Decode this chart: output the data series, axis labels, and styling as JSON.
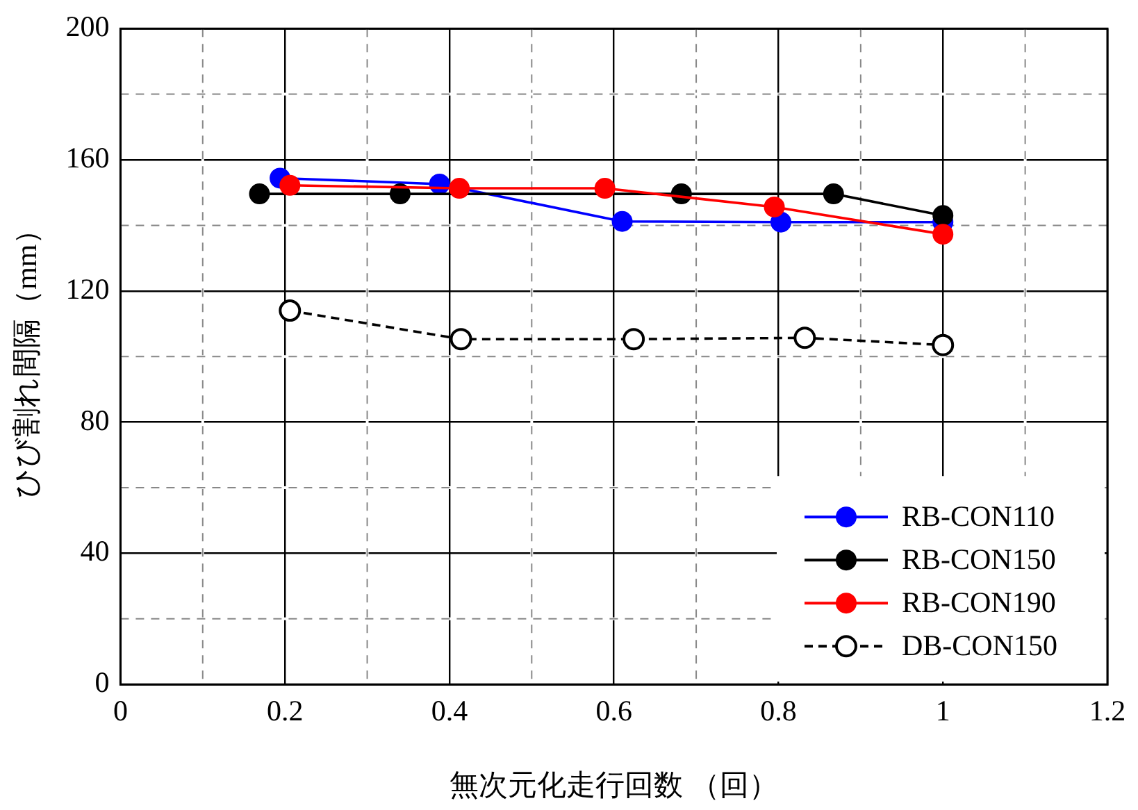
{
  "chart_data": {
    "type": "line",
    "xlabel": "無次元化走行回数 （回）",
    "ylabel": "ひび割れ間隔（mm）",
    "xlim": [
      0,
      1.2
    ],
    "ylim": [
      0,
      200
    ],
    "xticks": [
      0,
      {
        "value": 0.1,
        "label": null
      },
      0.2,
      {
        "value": 0.3,
        "label": null
      },
      0.4,
      {
        "value": 0.5,
        "label": null
      },
      0.6,
      {
        "value": 0.7,
        "label": null
      },
      0.8,
      {
        "value": 0.9,
        "label": null
      },
      1,
      {
        "value": 1.1,
        "label": null
      },
      1.2
    ],
    "yticks": [
      0,
      {
        "value": 20,
        "label": null
      },
      40,
      {
        "value": 60,
        "label": null
      },
      80,
      {
        "value": 100,
        "label": null
      },
      120,
      {
        "value": 140,
        "label": null
      },
      160,
      {
        "value": 180,
        "label": null
      },
      200
    ],
    "grid": true,
    "legend": "bottom right",
    "marker": "circle",
    "series": [
      {
        "name": "RB-CON110",
        "color": "#0000ff",
        "x": [
          0.194,
          0.388,
          0.61,
          0.803,
          1.0
        ],
        "values": [
          154.4,
          152.6,
          141.2,
          141,
          141
        ]
      },
      {
        "name": "RB-CON150",
        "color": "#000000",
        "x": [
          0.169,
          0.34,
          0.682,
          0.867,
          1.0
        ],
        "values": [
          149.6,
          149.6,
          149.6,
          149.6,
          143
        ]
      },
      {
        "name": "RB-CON190",
        "color": "#ff0000",
        "x": [
          0.206,
          0.412,
          0.589,
          0.795,
          1.0
        ],
        "values": [
          152.2,
          151.3,
          151.3,
          145.6,
          137.3
        ]
      },
      {
        "name": "DB-CON150",
        "color": "#000000",
        "x": [
          0.206,
          0.414,
          0.624,
          0.832,
          1.0
        ],
        "values": [
          114,
          105.3,
          105.3,
          105.7,
          103.5
        ],
        "line_style": "dashed"
      }
    ]
  }
}
